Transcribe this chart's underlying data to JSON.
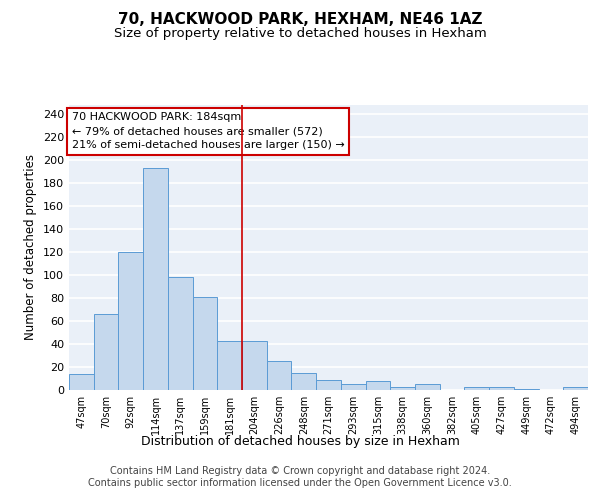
{
  "title": "70, HACKWOOD PARK, HEXHAM, NE46 1AZ",
  "subtitle": "Size of property relative to detached houses in Hexham",
  "xlabel": "Distribution of detached houses by size in Hexham",
  "ylabel": "Number of detached properties",
  "bar_color": "#c5d8ed",
  "bar_edge_color": "#5b9bd5",
  "background_color": "#eaf0f8",
  "categories": [
    "47sqm",
    "70sqm",
    "92sqm",
    "114sqm",
    "137sqm",
    "159sqm",
    "181sqm",
    "204sqm",
    "226sqm",
    "248sqm",
    "271sqm",
    "293sqm",
    "315sqm",
    "338sqm",
    "360sqm",
    "382sqm",
    "405sqm",
    "427sqm",
    "449sqm",
    "472sqm",
    "494sqm"
  ],
  "values": [
    14,
    66,
    120,
    193,
    98,
    81,
    43,
    43,
    25,
    15,
    9,
    5,
    8,
    3,
    5,
    0,
    3,
    3,
    1,
    0,
    3
  ],
  "vline_x": 6.5,
  "vline_color": "#cc0000",
  "annotation_text": "70 HACKWOOD PARK: 184sqm\n← 79% of detached houses are smaller (572)\n21% of semi-detached houses are larger (150) →",
  "annotation_box_color": "#ffffff",
  "annotation_box_edge": "#cc0000",
  "ylim": [
    0,
    248
  ],
  "yticks": [
    0,
    20,
    40,
    60,
    80,
    100,
    120,
    140,
    160,
    180,
    200,
    220,
    240
  ],
  "footer": "Contains HM Land Registry data © Crown copyright and database right 2024.\nContains public sector information licensed under the Open Government Licence v3.0.",
  "title_fontsize": 11,
  "subtitle_fontsize": 9.5,
  "annotation_fontsize": 8,
  "footer_fontsize": 7,
  "ylabel_fontsize": 8.5,
  "xlabel_fontsize": 9
}
